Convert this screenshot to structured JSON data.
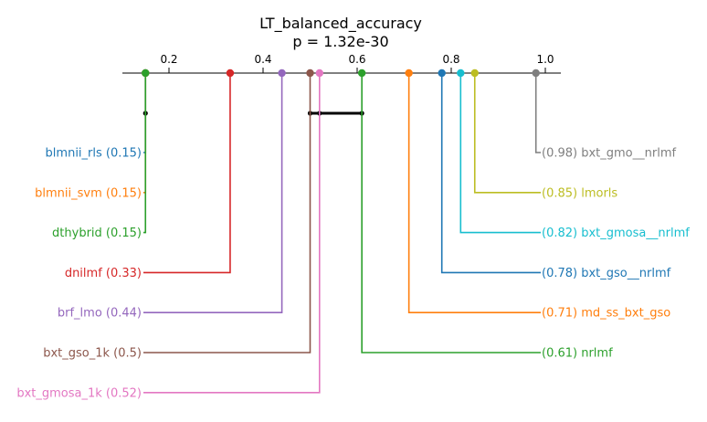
{
  "chart_data": {
    "type": "critical-difference",
    "title": "LT_balanced_accuracy",
    "subtitle": "p = 1.32e-30",
    "axis": {
      "min": 0.15,
      "max": 1.0,
      "ticks": [
        0.2,
        0.4,
        0.6,
        0.8,
        1.0
      ],
      "tick_labels": [
        "0.2",
        "0.4",
        "0.6",
        "0.8",
        "1.0"
      ]
    },
    "methods": [
      {
        "name": "blmnii_rls",
        "value": 0.15,
        "label": "blmnii_rls (0.15)",
        "color": "#1f77b4",
        "side": "left"
      },
      {
        "name": "blmnii_svm",
        "value": 0.15,
        "label": "blmnii_svm (0.15)",
        "color": "#ff7f0e",
        "side": "left"
      },
      {
        "name": "dthybrid",
        "value": 0.15,
        "label": "dthybrid (0.15)",
        "color": "#2ca02c",
        "side": "left"
      },
      {
        "name": "dnilmf",
        "value": 0.33,
        "label": "dnilmf (0.33)",
        "color": "#d62728",
        "side": "left"
      },
      {
        "name": "brf_lmo",
        "value": 0.44,
        "label": "brf_lmo (0.44)",
        "color": "#9467bd",
        "side": "left"
      },
      {
        "name": "bxt_gso_1k",
        "value": 0.5,
        "label": "bxt_gso_1k (0.5)",
        "color": "#8c564b",
        "side": "left"
      },
      {
        "name": "bxt_gmosa_1k",
        "value": 0.52,
        "label": "bxt_gmosa_1k (0.52)",
        "color": "#e377c2",
        "side": "left"
      },
      {
        "name": "bxt_gmo__nrlmf",
        "value": 0.98,
        "label": "(0.98) bxt_gmo__nrlmf",
        "color": "#7f7f7f",
        "side": "right"
      },
      {
        "name": "lmorls",
        "value": 0.85,
        "label": "(0.85) lmorls",
        "color": "#bcbd22",
        "side": "right"
      },
      {
        "name": "bxt_gmosa__nrlmf",
        "value": 0.82,
        "label": "(0.82) bxt_gmosa__nrlmf",
        "color": "#17becf",
        "side": "right"
      },
      {
        "name": "bxt_gso__nrlmf",
        "value": 0.78,
        "label": "(0.78) bxt_gso__nrlmf",
        "color": "#1f77b4",
        "side": "right"
      },
      {
        "name": "md_ss_bxt_gso",
        "value": 0.71,
        "label": "(0.71) md_ss_bxt_gso",
        "color": "#ff7f0e",
        "side": "right"
      },
      {
        "name": "nrlmf",
        "value": 0.61,
        "label": "(0.61) nrlmf",
        "color": "#2ca02c",
        "side": "right"
      }
    ],
    "cliques": [
      {
        "members": [
          "blmnii_rls",
          "blmnii_svm",
          "dthybrid"
        ],
        "range": [
          0.15,
          0.15
        ]
      },
      {
        "members": [
          "bxt_gso_1k",
          "bxt_gmosa_1k",
          "nrlmf"
        ],
        "range": [
          0.5,
          0.61
        ]
      }
    ]
  }
}
